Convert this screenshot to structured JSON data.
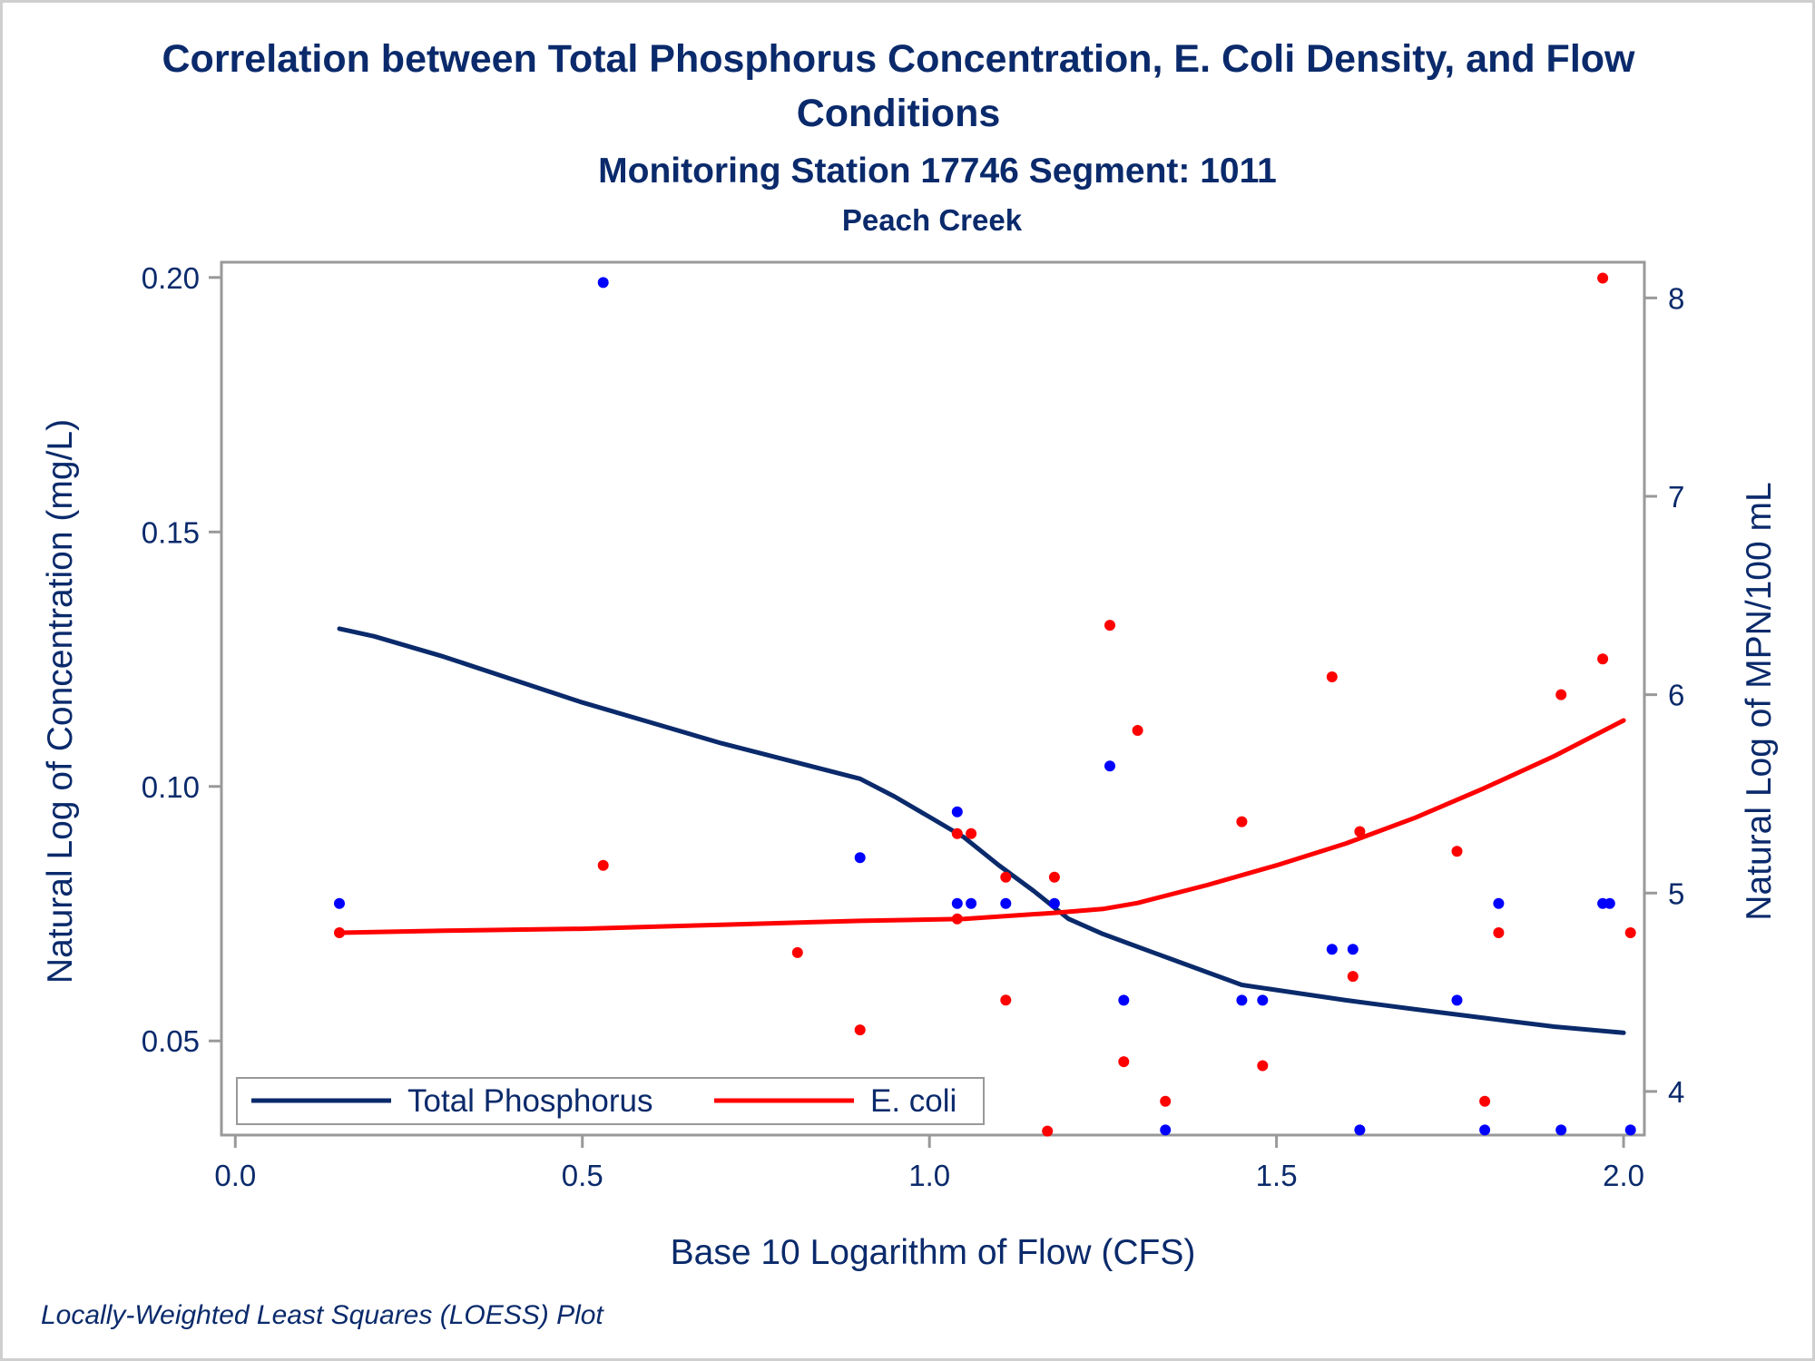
{
  "chart_data": {
    "type": "scatter",
    "title_line1": "Correlation between Total Phosphorus Concentration, E. Coli Density, and Flow",
    "title_line2": "Conditions",
    "subtitle": "Monitoring Station 17746 Segment: 1011",
    "subtitle2": "Peach Creek",
    "xlabel": "Base 10 Logarithm of Flow (CFS)",
    "ylabel": "Natural Log of Concentration (mg/L)",
    "y2label": "Natural Log of MPN/100 mL",
    "footnote": "Locally-Weighted Least Squares (LOESS) Plot",
    "xlim": [
      -0.02,
      2.03
    ],
    "ylim": [
      0.0315,
      0.203
    ],
    "y2lim": [
      3.78,
      8.18
    ],
    "x_ticks": [
      "0.0",
      "0.5",
      "1.0",
      "1.5",
      "2.0"
    ],
    "y_ticks": [
      "0.05",
      "0.10",
      "0.15",
      "0.20"
    ],
    "y2_ticks": [
      "4",
      "5",
      "6",
      "7",
      "8"
    ],
    "grid": false,
    "legend_position": "bottom-left inside plot",
    "colors": {
      "text": "#0a2a6b",
      "frame": "#999999",
      "phosphorus_line": "#0a2a6b",
      "phosphorus_points": "#0000ff",
      "ecoli": "#ff0000"
    },
    "series": [
      {
        "name": "Total Phosphorus",
        "axis": "y",
        "role": "loess",
        "x": [
          0.15,
          0.2,
          0.3,
          0.4,
          0.5,
          0.6,
          0.7,
          0.8,
          0.9,
          0.95,
          1.0,
          1.05,
          1.1,
          1.15,
          1.2,
          1.25,
          1.3,
          1.35,
          1.4,
          1.45,
          1.5,
          1.6,
          1.7,
          1.8,
          1.9,
          2.0
        ],
        "y": [
          0.131,
          0.1295,
          0.1255,
          0.121,
          0.1165,
          0.1125,
          0.1085,
          0.105,
          0.1015,
          0.098,
          0.094,
          0.09,
          0.0845,
          0.0795,
          0.074,
          0.071,
          0.0685,
          0.066,
          0.0635,
          0.061,
          0.06,
          0.058,
          0.0562,
          0.0545,
          0.0528,
          0.0516
        ]
      },
      {
        "name": "E. coli",
        "axis": "y2",
        "role": "loess",
        "x": [
          0.15,
          0.3,
          0.5,
          0.7,
          0.9,
          1.05,
          1.18,
          1.25,
          1.3,
          1.4,
          1.5,
          1.6,
          1.7,
          1.8,
          1.9,
          2.0
        ],
        "y": [
          4.8,
          4.81,
          4.82,
          4.84,
          4.86,
          4.87,
          4.9,
          4.92,
          4.95,
          5.04,
          5.14,
          5.25,
          5.38,
          5.53,
          5.69,
          5.87
        ]
      },
      {
        "axis": "y",
        "role": "observations",
        "x": [
          0.15,
          0.53,
          0.9,
          1.04,
          1.04,
          1.06,
          1.11,
          1.18,
          1.26,
          1.28,
          1.34,
          1.45,
          1.48,
          1.58,
          1.61,
          1.62,
          1.76,
          1.8,
          1.82,
          1.91,
          1.97,
          1.98,
          2.01
        ],
        "y": [
          0.077,
          0.199,
          0.086,
          0.095,
          0.077,
          0.077,
          0.077,
          0.077,
          0.104,
          0.058,
          0.0325,
          0.058,
          0.058,
          0.068,
          0.068,
          0.0325,
          0.058,
          0.0325,
          0.077,
          0.0325,
          0.077,
          0.077,
          0.0325
        ]
      },
      {
        "axis": "y2",
        "role": "observations",
        "x": [
          0.15,
          0.53,
          0.81,
          0.9,
          1.04,
          1.04,
          1.06,
          1.11,
          1.11,
          1.17,
          1.18,
          1.26,
          1.28,
          1.3,
          1.34,
          1.45,
          1.48,
          1.58,
          1.61,
          1.62,
          1.76,
          1.8,
          1.82,
          1.91,
          1.97,
          1.97,
          2.01
        ],
        "y": [
          4.8,
          5.14,
          4.7,
          4.31,
          5.3,
          4.87,
          5.3,
          5.08,
          4.46,
          3.8,
          5.08,
          6.35,
          4.15,
          5.82,
          3.95,
          5.36,
          4.13,
          6.09,
          4.58,
          5.31,
          5.21,
          3.95,
          4.8,
          6.0,
          6.18,
          8.1,
          4.8
        ]
      }
    ]
  },
  "legend": {
    "phosphorus_label": "Total Phosphorus",
    "ecoli_label": "E. coli"
  }
}
